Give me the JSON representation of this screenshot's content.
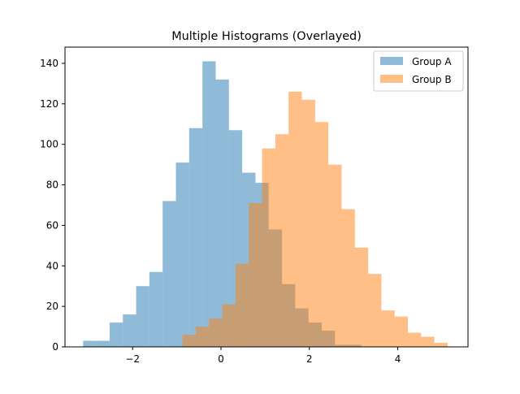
{
  "chart_data": {
    "type": "bar",
    "title": "Multiple Histograms (Overlayed)",
    "xlabel": "",
    "ylabel": "",
    "xlim": [
      -3.53,
      5.59
    ],
    "ylim": [
      0,
      148
    ],
    "xticks": [
      -2,
      0,
      2,
      4
    ],
    "xtick_labels": [
      "−2",
      "0",
      "2",
      "4"
    ],
    "yticks": [
      0,
      20,
      40,
      60,
      80,
      100,
      120,
      140
    ],
    "ytick_labels": [
      "0",
      "20",
      "40",
      "60",
      "80",
      "100",
      "120",
      "140"
    ],
    "grid": false,
    "legend_position": "top-right",
    "alpha": 0.5,
    "series": [
      {
        "name": "Group A",
        "color": "#1f77b4",
        "bin_edges": [
          -3.12,
          -2.82,
          -2.52,
          -2.22,
          -1.92,
          -1.62,
          -1.32,
          -1.02,
          -0.72,
          -0.42,
          -0.12,
          0.18,
          0.48,
          0.78,
          1.08,
          1.38,
          1.68,
          1.98,
          2.28,
          2.58,
          2.88,
          3.18
        ],
        "counts": [
          3,
          3,
          12,
          16,
          30,
          37,
          72,
          91,
          108,
          141,
          132,
          107,
          86,
          81,
          58,
          31,
          19,
          12,
          8,
          1,
          1
        ]
      },
      {
        "name": "Group B",
        "color": "#ff7f0e",
        "bin_edges": [
          -0.87,
          -0.57,
          -0.27,
          0.03,
          0.33,
          0.63,
          0.93,
          1.23,
          1.53,
          1.83,
          2.13,
          2.43,
          2.73,
          3.03,
          3.33,
          3.63,
          3.93,
          4.23,
          4.53,
          4.83,
          5.13
        ],
        "counts": [
          6,
          10,
          14,
          21,
          41,
          71,
          98,
          105,
          126,
          122,
          111,
          90,
          68,
          49,
          36,
          18,
          15,
          7,
          5,
          2
        ]
      }
    ]
  }
}
